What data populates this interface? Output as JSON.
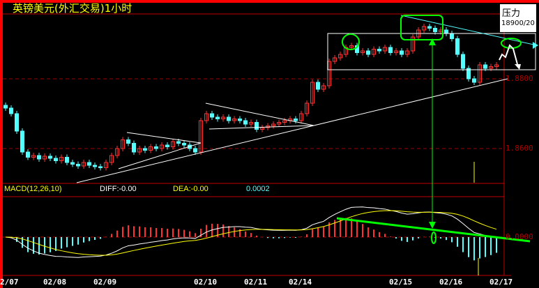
{
  "title": "英镑美元(外汇交易)1小时",
  "popup": {
    "label": "压力",
    "value": "18900/20"
  },
  "macd_header": {
    "name": "MACD(12,26,10)",
    "diff": "DIFF:-0.00",
    "dea": "DEA:-0.00",
    "macd": "0.0002"
  },
  "colors": {
    "up": "#ff3232",
    "down": "#54ffff",
    "frame": "#c00000",
    "diff": "#ffffff",
    "dea": "#ffff00",
    "annot_green": "#00ff00",
    "annot_cyan": "#54ffff"
  },
  "chart_data": {
    "type": "candlestick",
    "title": "英镑美元(外汇交易)1小时",
    "y_ticks": [
      {
        "value": 1.88,
        "label": "1.8800"
      },
      {
        "value": 1.86,
        "label": "1.8600"
      }
    ],
    "macd_ticks": [
      {
        "value": 0,
        "label": "0.0000"
      }
    ],
    "x_ticks": [
      {
        "index": 0,
        "label": "2/07"
      },
      {
        "index": 9,
        "label": "02/08"
      },
      {
        "index": 18,
        "label": "02/09"
      },
      {
        "index": 36,
        "label": "02/10"
      },
      {
        "index": 45,
        "label": "02/11"
      },
      {
        "index": 53,
        "label": "02/14"
      },
      {
        "index": 71,
        "label": "02/15"
      },
      {
        "index": 80,
        "label": "02/16"
      },
      {
        "index": 89,
        "label": "02/17"
      }
    ],
    "closes": [
      1.8716,
      1.87,
      1.865,
      1.859,
      1.8575,
      1.858,
      1.857,
      1.8578,
      1.8572,
      1.8565,
      1.8575,
      1.856,
      1.8555,
      1.855,
      1.856,
      1.8552,
      1.8548,
      1.8545,
      1.856,
      1.858,
      1.86,
      1.8625,
      1.8615,
      1.859,
      1.86,
      1.8595,
      1.8605,
      1.86,
      1.861,
      1.8605,
      1.862,
      1.8615,
      1.861,
      1.86,
      1.859,
      1.868,
      1.87,
      1.869,
      1.8685,
      1.869,
      1.868,
      1.8685,
      1.868,
      1.867,
      1.8675,
      1.8655,
      1.866,
      1.8665,
      1.867,
      1.8675,
      1.868,
      1.8685,
      1.868,
      1.87,
      1.873,
      1.879,
      1.877,
      1.878,
      1.885,
      1.886,
      1.887,
      1.889,
      1.8895,
      1.8875,
      1.888,
      1.887,
      1.8885,
      1.888,
      1.889,
      1.8875,
      1.888,
      1.887,
      1.888,
      1.892,
      1.894,
      1.895,
      1.8945,
      1.8935,
      1.894,
      1.893,
      1.8915,
      1.887,
      1.883,
      1.88,
      1.879,
      1.884,
      1.883,
      1.8835,
      1.884
    ],
    "macd_params": [
      12,
      26,
      10
    ]
  }
}
